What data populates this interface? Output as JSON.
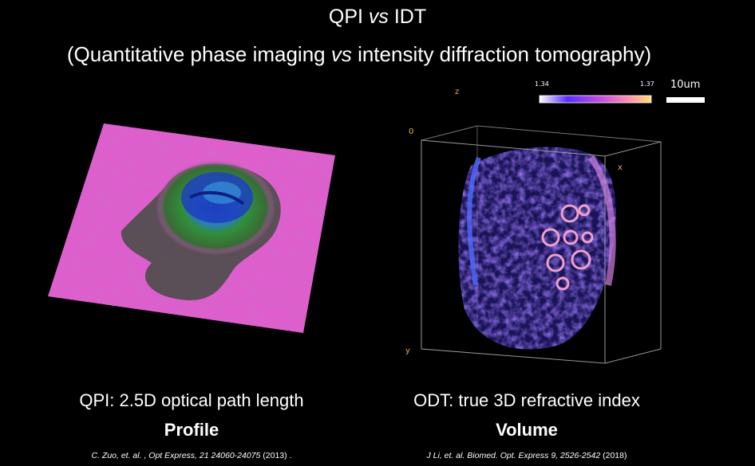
{
  "header": {
    "title_pre": "QPI ",
    "title_vs": "vs",
    "title_post": " IDT",
    "subtitle_pre": "(Quantitative phase imaging ",
    "subtitle_vs": "vs",
    "subtitle_post": " intensity diffraction tomography)"
  },
  "left_panel": {
    "caption": "QPI: 2.5D optical path length",
    "caption_bold": "Profile",
    "reference_authors": "C. Zuo, et. al. , Opt Express, 21 24060-24075",
    "reference_year": " (2013) .",
    "colors": {
      "background": "#e35ad0",
      "cell_outer": "#2f8f3a",
      "cell_core": "#2555c8"
    }
  },
  "right_panel": {
    "caption": "ODT: true 3D refractive index",
    "caption_bold": "Volume",
    "reference_authors": "J Li, et. al.  Biomed. Opt. Express 9, 2526-2542",
    "reference_year": " (2018)",
    "axes": {
      "z": "z",
      "zero": "0",
      "x": "x",
      "y": "y"
    },
    "colorbar": {
      "min": "1.34",
      "max": "1.37",
      "colors": [
        "#ffffff",
        "#5a2cff",
        "#c64fe0",
        "#ff8fb0",
        "#ffe070"
      ]
    },
    "scale_bar": "10um"
  }
}
